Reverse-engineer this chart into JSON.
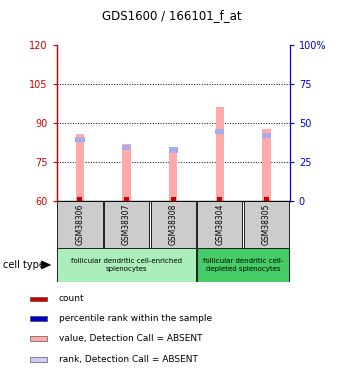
{
  "title": "GDS1600 / 166101_f_at",
  "samples": [
    "GSM38306",
    "GSM38307",
    "GSM38308",
    "GSM38304",
    "GSM38305"
  ],
  "bar_values": [
    85.5,
    82.0,
    80.5,
    96.0,
    87.5
  ],
  "rank_values": [
    82.5,
    79.5,
    78.5,
    85.5,
    84.0
  ],
  "ylim_left": [
    60,
    120
  ],
  "ylim_right": [
    0,
    100
  ],
  "yticks_left": [
    60,
    75,
    90,
    105,
    120
  ],
  "yticks_right": [
    0,
    25,
    50,
    75,
    100
  ],
  "bar_color": "#FFAAAA",
  "rank_color": "#AAAAEE",
  "count_color": "#CC0000",
  "cell_types": [
    {
      "label": "follicular dendritic cell-enriched\nsplenocytes",
      "span": [
        0,
        2
      ],
      "color": "#AAEEBB"
    },
    {
      "label": "follicular dendritic cell-\ndepleted splenocytes",
      "span": [
        3,
        4
      ],
      "color": "#44CC66"
    }
  ],
  "legend_items": [
    {
      "color": "#CC0000",
      "label": "count"
    },
    {
      "color": "#0000CC",
      "label": "percentile rank within the sample"
    },
    {
      "color": "#FFAAAA",
      "label": "value, Detection Call = ABSENT"
    },
    {
      "color": "#CCCCFF",
      "label": "rank, Detection Call = ABSENT"
    }
  ],
  "left_axis_color": "#CC0000",
  "right_axis_color": "#0000CC",
  "dotted_yticks": [
    75,
    90,
    105
  ],
  "bar_width": 0.18,
  "ybase": 60
}
